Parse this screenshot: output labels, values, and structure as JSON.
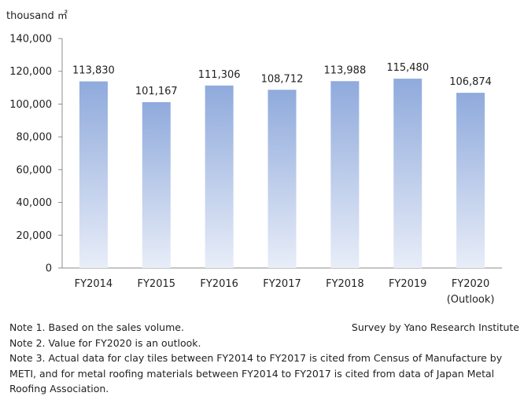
{
  "chart_data": {
    "type": "bar",
    "ylabel": "thousand ㎡",
    "ylim": [
      0,
      140000
    ],
    "yticks": [
      0,
      20000,
      40000,
      60000,
      80000,
      100000,
      120000,
      140000
    ],
    "categories": [
      [
        "FY2014"
      ],
      [
        "FY2015"
      ],
      [
        "FY2016"
      ],
      [
        "FY2017"
      ],
      [
        "FY2018"
      ],
      [
        "FY2019"
      ],
      [
        "FY2020",
        "(Outlook)"
      ]
    ],
    "values": [
      113830,
      101167,
      111306,
      108712,
      113988,
      115480,
      106874
    ],
    "grid": false,
    "legend": "none",
    "bar_color_top": "#8faadc",
    "bar_color_bottom": "#e8edf8"
  },
  "notes": [
    "Note 1. Based on the sales volume.",
    "Note 2. Value for FY2020 is an outlook.",
    "Note 3. Actual data for clay tiles between FY2014 to FY2017 is cited from Census of Manufacture by METI, and for metal roofing materials between FY2014 to FY2017 is cited from data of Japan Metal Roofing Association."
  ],
  "credit": "Survey by Yano Research Institute"
}
